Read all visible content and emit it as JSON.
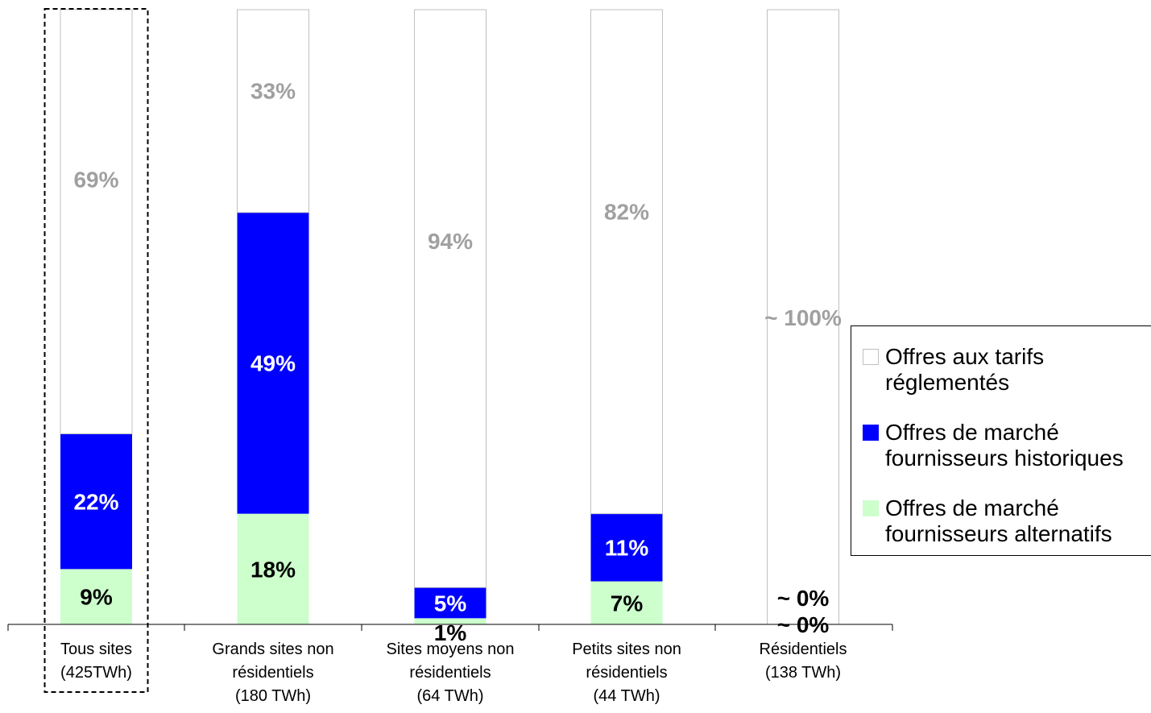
{
  "chart_data": {
    "type": "bar",
    "stacked": true,
    "percent": true,
    "categories": [
      [
        "Tous sites",
        "(425TWh)"
      ],
      [
        "Grands sites non",
        "résidentiels",
        "(180 TWh)"
      ],
      [
        "Sites moyens non",
        "résidentiels",
        "(64 TWh)"
      ],
      [
        "Petits sites non",
        "résidentiels",
        "(44 TWh)"
      ],
      [
        "Résidentiels",
        "(138 TWh)"
      ]
    ],
    "series": [
      {
        "name": "Offres de marché fournisseurs alternatifs",
        "legend": "Offres de marché\nfournisseurs alternatifs",
        "color": "#ccffcc",
        "label_color": "#000000",
        "values": [
          9,
          18,
          1,
          7,
          0
        ],
        "labels": [
          "9%",
          "18%",
          "1%",
          "7%",
          "~ 0%"
        ]
      },
      {
        "name": "Offres de marché fournisseurs historiques",
        "legend": "Offres de marché\nfournisseurs historiques",
        "color": "#0000ff",
        "label_color": "#ffffff",
        "values": [
          22,
          49,
          5,
          11,
          0
        ],
        "labels": [
          "22%",
          "49%",
          "5%",
          "11%",
          "~ 0%"
        ]
      },
      {
        "name": "Offres aux tarifs réglementés",
        "legend": "Offres aux tarifs\nréglementés",
        "color": "#ffffff",
        "label_color": "#a0a0a0",
        "values": [
          69,
          33,
          94,
          82,
          100
        ],
        "labels": [
          "69%",
          "33%",
          "94%",
          "82%",
          "~ 100%"
        ]
      }
    ],
    "legend_order": [
      2,
      1,
      0
    ],
    "legend_position": "right",
    "highlighted_category": 0,
    "grid": false
  }
}
